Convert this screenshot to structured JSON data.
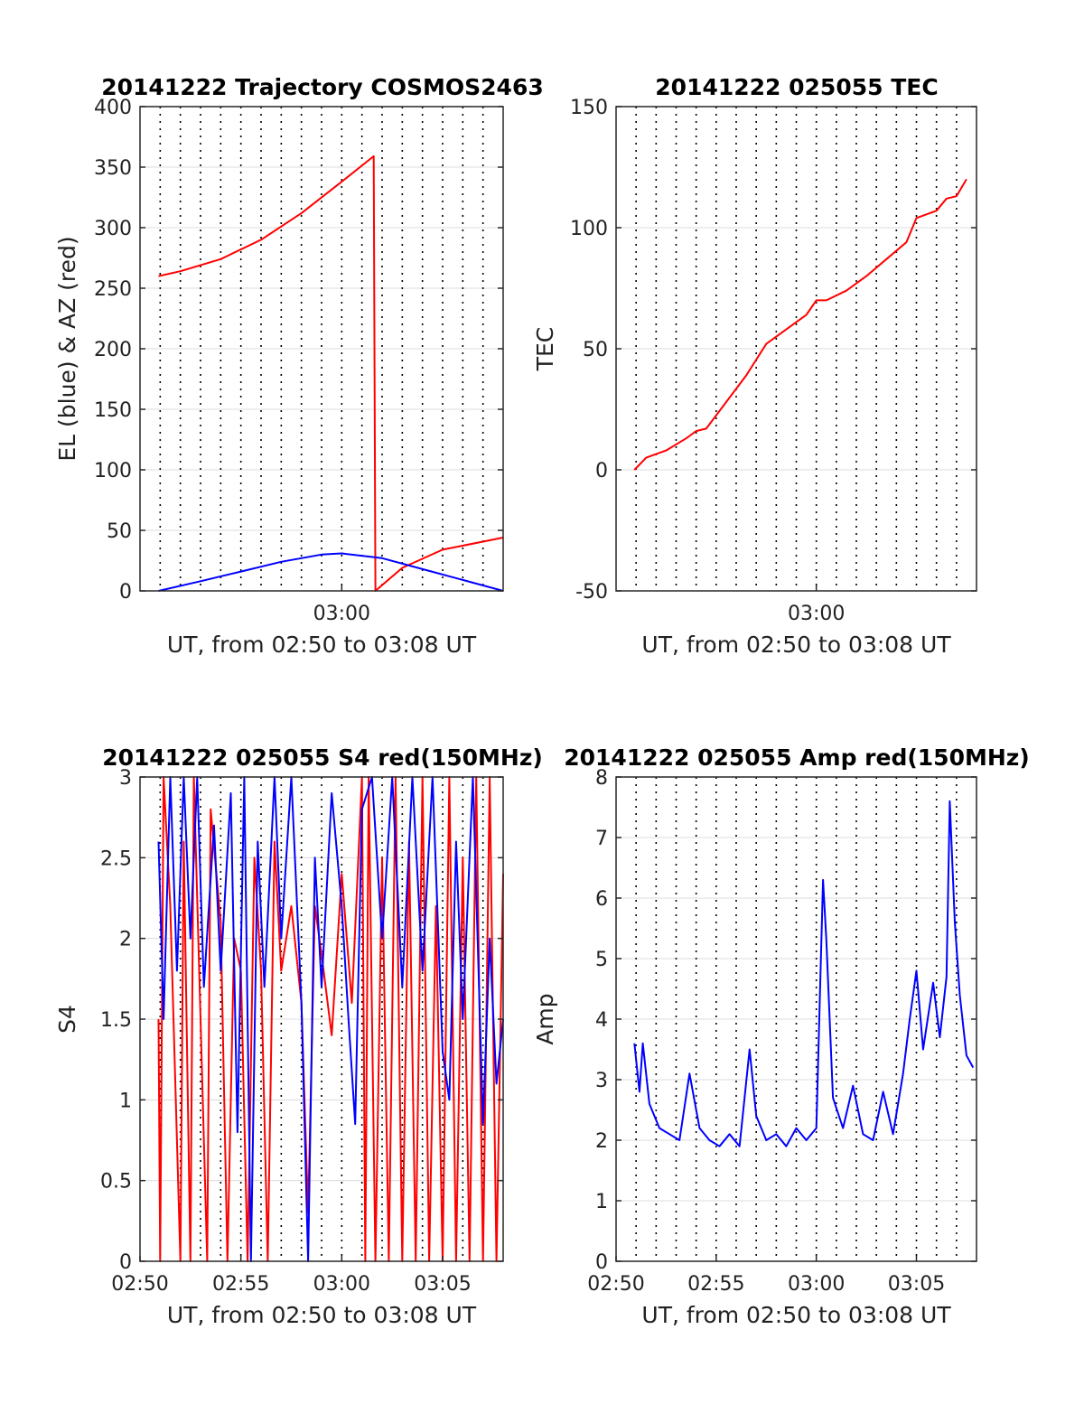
{
  "chart_data": [
    {
      "type": "line",
      "title": "20141222 Trajectory COSMOS2463",
      "xlabel": "UT, from 02:50 to 03:08 UT",
      "ylabel": "EL (blue) & AZ (red)",
      "xlim": [
        "02:50:00",
        "03:08:00"
      ],
      "ylim": [
        0,
        400
      ],
      "yticks": [
        0,
        50,
        100,
        150,
        200,
        250,
        300,
        350,
        400
      ],
      "xtick_labels": [
        {
          "t": "03:00",
          "label": "03:00"
        }
      ],
      "grid": true,
      "series": [
        {
          "color": "#ff0000",
          "points": [
            [
              "02:50:55",
              260
            ],
            [
              "02:52:00",
              264
            ],
            [
              "02:54:00",
              274
            ],
            [
              "02:56:00",
              290
            ],
            [
              "02:58:00",
              312
            ],
            [
              "03:00:00",
              338
            ],
            [
              "03:01:35",
              359
            ],
            [
              "03:01:40",
              0
            ],
            [
              "03:03:00",
              19
            ],
            [
              "03:05:00",
              34
            ],
            [
              "03:08:00",
              44
            ]
          ]
        },
        {
          "color": "#0000ff",
          "points": [
            [
              "02:50:55",
              0
            ],
            [
              "02:53:00",
              8
            ],
            [
              "02:55:00",
              16
            ],
            [
              "02:57:00",
              24
            ],
            [
              "02:59:00",
              30
            ],
            [
              "03:00:00",
              31
            ],
            [
              "03:02:00",
              27
            ],
            [
              "03:04:00",
              18
            ],
            [
              "03:06:00",
              9
            ],
            [
              "03:08:00",
              0
            ]
          ]
        }
      ]
    },
    {
      "type": "line",
      "title": "20141222 025055 TEC",
      "xlabel": "UT, from 02:50 to 03:08 UT",
      "ylabel": "TEC",
      "xlim": [
        "02:50:00",
        "03:08:00"
      ],
      "ylim": [
        -50,
        150
      ],
      "yticks": [
        -50,
        0,
        50,
        100,
        150
      ],
      "xtick_labels": [
        {
          "t": "03:00",
          "label": "03:00"
        }
      ],
      "grid": true,
      "series": [
        {
          "color": "#ff0000",
          "points": [
            [
              "02:50:55",
              0
            ],
            [
              "02:51:30",
              5
            ],
            [
              "02:52:30",
              8
            ],
            [
              "02:53:30",
              13
            ],
            [
              "02:54:00",
              16
            ],
            [
              "02:54:30",
              17
            ],
            [
              "02:55:30",
              28
            ],
            [
              "02:56:30",
              39
            ],
            [
              "02:57:30",
              52
            ],
            [
              "02:58:30",
              58
            ],
            [
              "02:59:30",
              64
            ],
            [
              "03:00:00",
              70
            ],
            [
              "03:00:30",
              70
            ],
            [
              "03:01:30",
              74
            ],
            [
              "03:02:30",
              80
            ],
            [
              "03:03:30",
              87
            ],
            [
              "03:04:30",
              94
            ],
            [
              "03:05:00",
              104
            ],
            [
              "03:06:00",
              107
            ],
            [
              "03:06:30",
              112
            ],
            [
              "03:07:00",
              113
            ],
            [
              "03:07:30",
              120
            ]
          ]
        }
      ]
    },
    {
      "type": "line",
      "title": "20141222 025055 S4 red(150MHz)",
      "xlabel": "UT, from 02:50 to 03:08 UT",
      "ylabel": "S4",
      "xlim": [
        "02:50:00",
        "03:08:00"
      ],
      "ylim": [
        0,
        3
      ],
      "yticks": [
        0,
        0.5,
        1,
        1.5,
        2,
        2.5,
        3
      ],
      "xtick_labels": [
        {
          "t": "02:50",
          "label": "02:50"
        },
        {
          "t": "02:55",
          "label": "02:55"
        },
        {
          "t": "03:00",
          "label": "03:00"
        },
        {
          "t": "03:05",
          "label": "03:05"
        }
      ],
      "grid": true,
      "series": [
        {
          "color": "#ff0000",
          "points": [
            [
              "02:50:55",
              1.5
            ],
            [
              "02:51:00",
              0
            ],
            [
              "02:51:10",
              3
            ],
            [
              "02:51:30",
              2.2
            ],
            [
              "02:52:00",
              0
            ],
            [
              "02:52:10",
              2.6
            ],
            [
              "02:52:30",
              0
            ],
            [
              "02:52:40",
              3
            ],
            [
              "02:53:00",
              1.5
            ],
            [
              "02:53:20",
              0
            ],
            [
              "02:53:30",
              2.8
            ],
            [
              "02:54:00",
              2.1
            ],
            [
              "02:54:20",
              0
            ],
            [
              "02:54:40",
              2.0
            ],
            [
              "02:55:00",
              1.8
            ],
            [
              "02:55:20",
              0
            ],
            [
              "02:55:40",
              2.5
            ],
            [
              "02:56:00",
              1.8
            ],
            [
              "02:56:20",
              0
            ],
            [
              "02:56:40",
              2.6
            ],
            [
              "02:57:00",
              1.8
            ],
            [
              "02:57:30",
              2.2
            ],
            [
              "02:58:00",
              1.6
            ],
            [
              "02:58:20",
              0.3
            ],
            [
              "02:58:40",
              2.2
            ],
            [
              "02:59:00",
              1.9
            ],
            [
              "02:59:30",
              1.4
            ],
            [
              "03:00:00",
              2.4
            ],
            [
              "03:00:30",
              1.6
            ],
            [
              "03:01:00",
              3
            ],
            [
              "03:01:10",
              0
            ],
            [
              "03:01:20",
              3
            ],
            [
              "03:01:40",
              0
            ],
            [
              "03:02:00",
              2.5
            ],
            [
              "03:02:20",
              0
            ],
            [
              "03:02:40",
              3
            ],
            [
              "03:03:00",
              0
            ],
            [
              "03:03:20",
              2.6
            ],
            [
              "03:03:40",
              0
            ],
            [
              "03:04:00",
              3
            ],
            [
              "03:04:20",
              0
            ],
            [
              "03:04:40",
              2.2
            ],
            [
              "03:05:00",
              0
            ],
            [
              "03:05:20",
              3
            ],
            [
              "03:05:40",
              0
            ],
            [
              "03:06:00",
              2.5
            ],
            [
              "03:06:20",
              0
            ],
            [
              "03:06:40",
              3
            ],
            [
              "03:07:00",
              0
            ],
            [
              "03:07:20",
              3
            ],
            [
              "03:07:40",
              0
            ],
            [
              "03:08:00",
              2.4
            ]
          ]
        },
        {
          "color": "#0000ff",
          "points": [
            [
              "02:50:55",
              2.6
            ],
            [
              "02:51:10",
              1.5
            ],
            [
              "02:51:30",
              3
            ],
            [
              "02:51:50",
              1.8
            ],
            [
              "02:52:10",
              3
            ],
            [
              "02:52:30",
              2.0
            ],
            [
              "02:52:50",
              3
            ],
            [
              "02:53:10",
              1.7
            ],
            [
              "02:53:40",
              2.7
            ],
            [
              "02:54:00",
              1.8
            ],
            [
              "02:54:30",
              2.9
            ],
            [
              "02:54:50",
              0.8
            ],
            [
              "02:55:10",
              3
            ],
            [
              "02:55:30",
              0
            ],
            [
              "02:55:50",
              2.6
            ],
            [
              "02:56:10",
              1.7
            ],
            [
              "02:56:40",
              3
            ],
            [
              "02:57:00",
              2.0
            ],
            [
              "02:57:30",
              3
            ],
            [
              "02:58:00",
              1.6
            ],
            [
              "02:58:20",
              0
            ],
            [
              "02:58:40",
              2.5
            ],
            [
              "02:59:00",
              1.7
            ],
            [
              "02:59:30",
              2.9
            ],
            [
              "03:00:00",
              2.2
            ],
            [
              "03:00:20",
              1.5
            ],
            [
              "03:00:40",
              0.85
            ],
            [
              "03:01:00",
              2.8
            ],
            [
              "03:01:30",
              3
            ],
            [
              "03:02:00",
              2.0
            ],
            [
              "03:02:30",
              3
            ],
            [
              "03:03:00",
              1.7
            ],
            [
              "03:03:30",
              3
            ],
            [
              "03:04:00",
              1.8
            ],
            [
              "03:04:30",
              3
            ],
            [
              "03:05:00",
              1.3
            ],
            [
              "03:05:20",
              1.0
            ],
            [
              "03:05:40",
              2.6
            ],
            [
              "03:06:00",
              1.5
            ],
            [
              "03:06:30",
              3
            ],
            [
              "03:07:00",
              0.85
            ],
            [
              "03:07:20",
              2.0
            ],
            [
              "03:07:40",
              1.1
            ],
            [
              "03:08:00",
              1.5
            ]
          ]
        }
      ]
    },
    {
      "type": "line",
      "title": "20141222 025055 Amp red(150MHz)",
      "xlabel": "UT, from 02:50 to 03:08 UT",
      "ylabel": "Amp",
      "xlim": [
        "02:50:00",
        "03:08:00"
      ],
      "ylim": [
        0,
        8
      ],
      "yticks": [
        0,
        1,
        2,
        3,
        4,
        5,
        6,
        7,
        8
      ],
      "xtick_labels": [
        {
          "t": "02:50",
          "label": "02:50"
        },
        {
          "t": "02:55",
          "label": "02:55"
        },
        {
          "t": "03:00",
          "label": "03:00"
        },
        {
          "t": "03:05",
          "label": "03:05"
        }
      ],
      "grid": true,
      "series": [
        {
          "color": "#0000ff",
          "points": [
            [
              "02:50:55",
              3.6
            ],
            [
              "02:51:10",
              2.8
            ],
            [
              "02:51:20",
              3.6
            ],
            [
              "02:51:40",
              2.6
            ],
            [
              "02:52:10",
              2.2
            ],
            [
              "02:52:40",
              2.1
            ],
            [
              "02:53:10",
              2.0
            ],
            [
              "02:53:40",
              3.1
            ],
            [
              "02:54:10",
              2.2
            ],
            [
              "02:54:40",
              2.0
            ],
            [
              "02:55:10",
              1.9
            ],
            [
              "02:55:40",
              2.1
            ],
            [
              "02:56:10",
              1.9
            ],
            [
              "02:56:40",
              3.5
            ],
            [
              "02:57:00",
              2.4
            ],
            [
              "02:57:30",
              2.0
            ],
            [
              "02:58:00",
              2.1
            ],
            [
              "02:58:30",
              1.9
            ],
            [
              "02:59:00",
              2.2
            ],
            [
              "02:59:30",
              2.0
            ],
            [
              "03:00:00",
              2.2
            ],
            [
              "03:00:20",
              6.3
            ],
            [
              "03:00:30",
              5.3
            ],
            [
              "03:00:50",
              2.7
            ],
            [
              "03:01:20",
              2.2
            ],
            [
              "03:01:50",
              2.9
            ],
            [
              "03:02:20",
              2.1
            ],
            [
              "03:02:50",
              2.0
            ],
            [
              "03:03:20",
              2.8
            ],
            [
              "03:03:50",
              2.1
            ],
            [
              "03:04:20",
              3.1
            ],
            [
              "03:04:40",
              4.0
            ],
            [
              "03:05:00",
              4.8
            ],
            [
              "03:05:20",
              3.5
            ],
            [
              "03:05:50",
              4.6
            ],
            [
              "03:06:10",
              3.7
            ],
            [
              "03:06:30",
              4.7
            ],
            [
              "03:06:40",
              7.6
            ],
            [
              "03:06:55",
              5.6
            ],
            [
              "03:07:10",
              4.4
            ],
            [
              "03:07:30",
              3.4
            ],
            [
              "03:07:50",
              3.2
            ]
          ]
        }
      ]
    }
  ]
}
